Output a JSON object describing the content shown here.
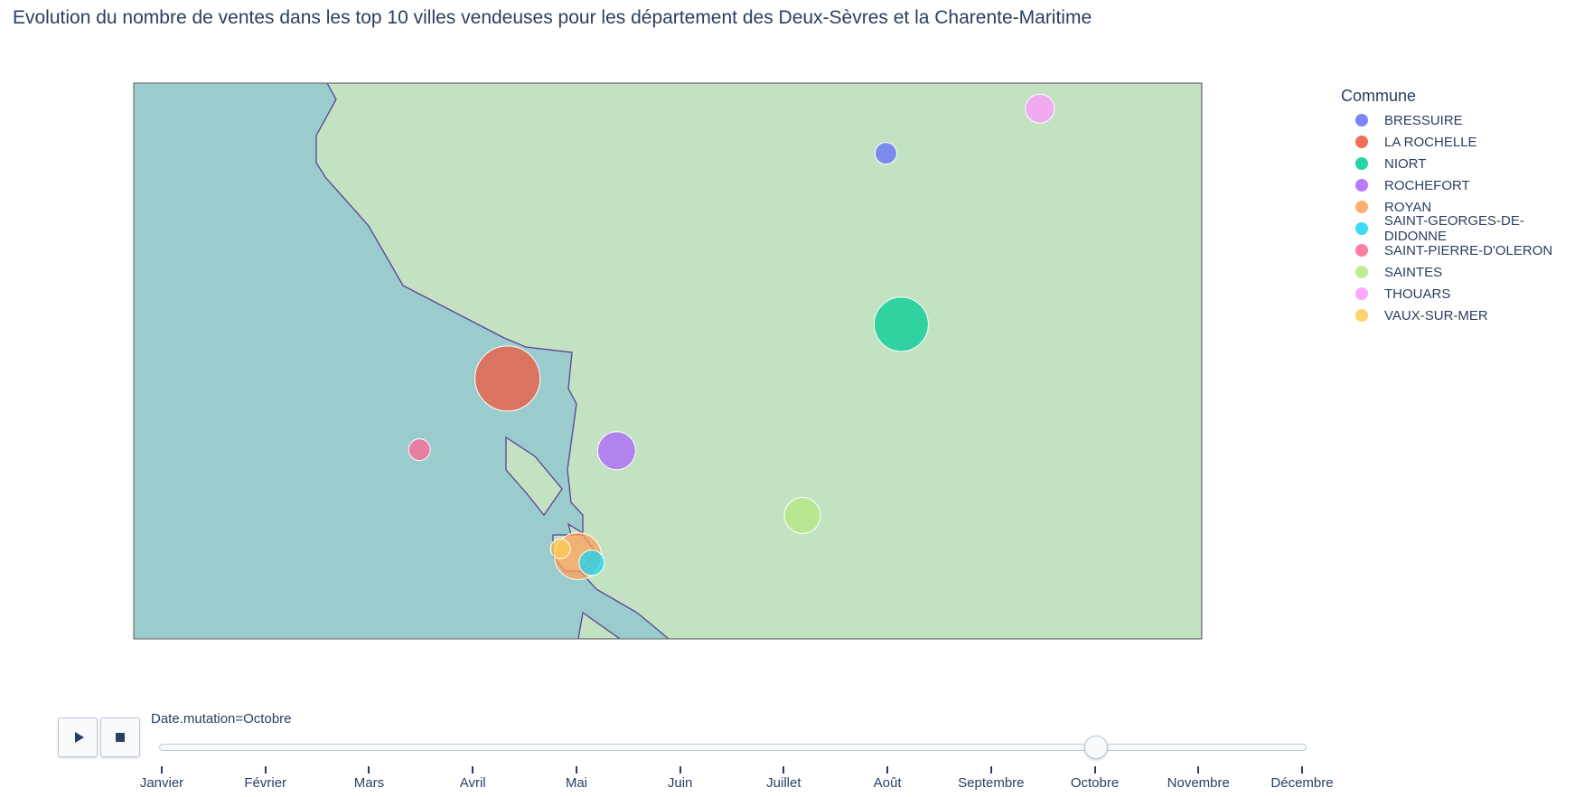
{
  "title": "Evolution du nombre de ventes dans les top 10 villes vendeuses pour les département des Deux-Sèvres et la Charente-Maritime",
  "colors": {
    "ocean": "#9acbcd",
    "land": "#c3e2c2",
    "border": "#5d3f99",
    "frame": "#6e6e6e"
  },
  "legend": {
    "title": "Commune",
    "items": [
      {
        "label": "BRESSUIRE",
        "color": "#636efa"
      },
      {
        "label": "LA ROCHELLE",
        "color": "#ef553b"
      },
      {
        "label": "NIORT",
        "color": "#00cc96"
      },
      {
        "label": "ROCHEFORT",
        "color": "#ab63fa"
      },
      {
        "label": "ROYAN",
        "color": "#ffa15a"
      },
      {
        "label": "SAINT-GEORGES-DE-DIDONNE",
        "color": "#19d3f3"
      },
      {
        "label": "SAINT-PIERRE-D'OLERON",
        "color": "#ff6692"
      },
      {
        "label": "SAINTES",
        "color": "#b6e880"
      },
      {
        "label": "THOUARS",
        "color": "#ff97ff"
      },
      {
        "label": "VAUX-SUR-MER",
        "color": "#fecb52"
      }
    ]
  },
  "chart_data": {
    "type": "scatter",
    "map": "bubble map",
    "frame": "Octobre",
    "points": [
      {
        "name": "BRESSUIRE",
        "lon": -0.486,
        "lat": 46.841,
        "size": 24
      },
      {
        "name": "LA ROCHELLE",
        "lon": -1.152,
        "lat": 46.16,
        "size": 72
      },
      {
        "name": "NIORT",
        "lon": -0.459,
        "lat": 46.324,
        "size": 60
      },
      {
        "name": "ROCHEFORT",
        "lon": -0.96,
        "lat": 45.942,
        "size": 42
      },
      {
        "name": "ROYAN",
        "lon": -1.028,
        "lat": 45.623,
        "size": 52
      },
      {
        "name": "SAINT-GEORGES-DE-DIDONNE",
        "lon": -1.004,
        "lat": 45.603,
        "size": 28
      },
      {
        "name": "SAINT-PIERRE-D'OLERON",
        "lon": -1.307,
        "lat": 45.945,
        "size": 24
      },
      {
        "name": "SAINTES",
        "lon": -0.633,
        "lat": 45.746,
        "size": 40
      },
      {
        "name": "THOUARS",
        "lon": -0.215,
        "lat": 46.976,
        "size": 32
      },
      {
        "name": "VAUX-SUR-MER",
        "lon": -1.059,
        "lat": 45.645,
        "size": 22
      }
    ]
  },
  "slider": {
    "current_label": "Date.mutation=Octobre",
    "current_value": "Octobre",
    "steps": [
      "Janvier",
      "Février",
      "Mars",
      "Avril",
      "Mai",
      "Juin",
      "Juillet",
      "Août",
      "Septembre",
      "Octobre",
      "Novembre",
      "Décembre"
    ]
  },
  "controls": {
    "play": "play-icon",
    "stop": "stop-icon"
  }
}
